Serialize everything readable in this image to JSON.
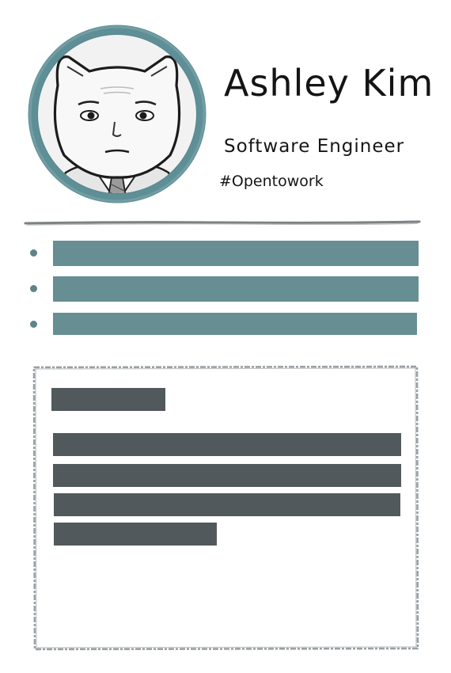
{
  "profile": {
    "name": "Ashley Kim",
    "job_title": "Software Engineer",
    "hashtag": "#Opentowork"
  },
  "icons": {
    "avatar": "cat-in-suit-avatar",
    "bullet": "bullet-dot-icon"
  },
  "colors": {
    "accent": "#668e93",
    "text_placeholder": "#52595c",
    "frame": "#9aa0a3"
  },
  "skills": {
    "count_shown": 3
  },
  "about": {
    "body_lines": 4
  }
}
